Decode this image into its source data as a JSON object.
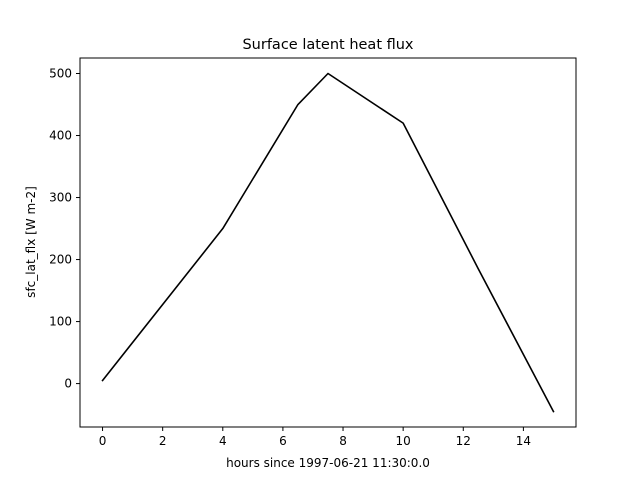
{
  "chart_data": {
    "type": "line",
    "title": "Surface latent heat flux",
    "xlabel": "hours since 1997-06-21 11:30:0.0",
    "ylabel": "sfc_lat_flx [W m-2]",
    "xlim": [
      -0.75,
      15.75
    ],
    "ylim": [
      -70,
      525
    ],
    "xticks": [
      0,
      2,
      4,
      6,
      8,
      10,
      12,
      14
    ],
    "yticks": [
      0,
      100,
      200,
      300,
      400,
      500
    ],
    "grid": false,
    "line_color": "#000000",
    "series": [
      {
        "x": [
          0,
          4,
          6.5,
          7.5,
          10,
          12.5,
          15
        ],
        "y": [
          5,
          250,
          450,
          500,
          420,
          185,
          -45
        ]
      }
    ]
  }
}
